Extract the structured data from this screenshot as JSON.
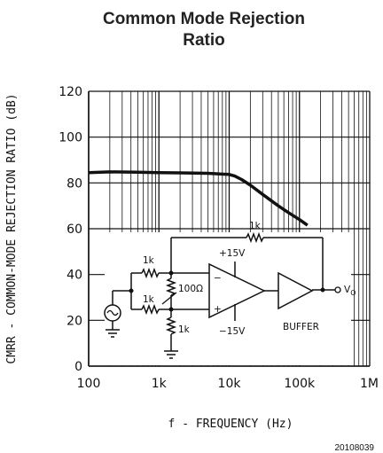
{
  "chart_data": {
    "type": "line",
    "title_line1": "Common Mode Rejection",
    "title_line2": "Ratio",
    "xlabel": "f - FREQUENCY (Hz)",
    "ylabel": "CMRR - COMMON-MODE REJECTION RATIO (dB)",
    "x_scale": "log",
    "xlim": [
      100,
      1000000
    ],
    "ylim": [
      0,
      120
    ],
    "x_ticks": [
      100,
      1000,
      10000,
      100000,
      1000000
    ],
    "x_tick_labels": [
      "100",
      "1k",
      "10k",
      "100k",
      "1M"
    ],
    "y_ticks": [
      0,
      20,
      40,
      60,
      80,
      100,
      120
    ],
    "y_tick_labels": [
      "0",
      "20",
      "40",
      "60",
      "80",
      "100",
      "120"
    ],
    "grid": true,
    "series": [
      {
        "x": [
          100,
          200,
          500,
          1000,
          2000,
          5000,
          10000,
          12000,
          15000,
          20000,
          30000,
          50000,
          70000,
          100000,
          130000
        ],
        "y": [
          84.5,
          84.8,
          84.7,
          84.5,
          84.4,
          84.2,
          83.7,
          83.0,
          81.5,
          79.0,
          75.0,
          70.0,
          67.0,
          64.0,
          61.5
        ]
      }
    ],
    "figure_id": "20108039"
  },
  "circuit": {
    "r_feedback": "1k",
    "r_in_top": "1k",
    "r_in_bottom": "1k",
    "r_shunt": "1k",
    "r_pot": "100Ω",
    "supply_pos": "+15V",
    "supply_neg": "−15V",
    "opamp_minus": "−",
    "opamp_plus": "+",
    "buffer_label": "BUFFER",
    "output_label": "V",
    "output_sub": "O"
  }
}
